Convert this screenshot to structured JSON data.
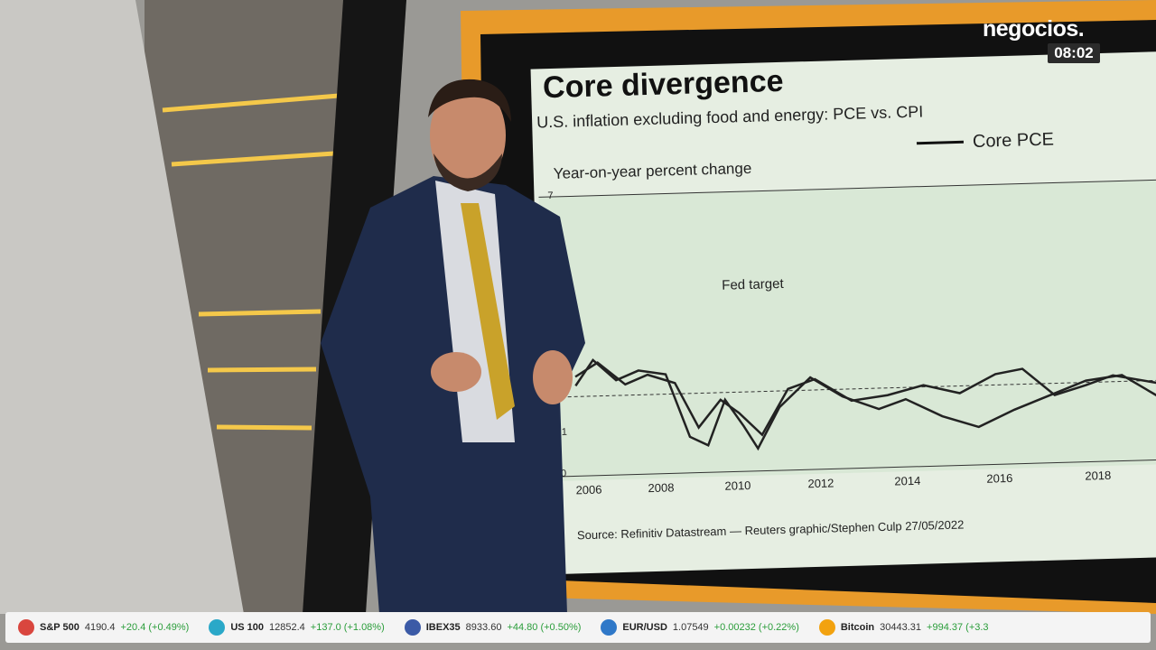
{
  "logo": "negocios.",
  "clock": "08:02",
  "screen": {
    "title": "Core divergence",
    "subtitle": "U.S. inflation excluding food and energy: PCE vs. CPI",
    "legend": "Core PCE",
    "axis_label": "Year-on-year percent change",
    "y_labels": [
      "7",
      "1",
      "0"
    ],
    "x_labels": [
      "2006",
      "2008",
      "2010",
      "2012",
      "2014",
      "2016",
      "2018"
    ],
    "annotation": "Fed target",
    "source": "Source: Refinitiv Datastream — Reuters graphic/Stephen Culp 27/05/2022"
  },
  "ticker": [
    {
      "name": "S&P 500",
      "price": "4190.4",
      "change": "+20.4 (+0.49%)"
    },
    {
      "name": "US 100",
      "price": "12852.4",
      "change": "+137.0 (+1.08%)"
    },
    {
      "name": "IBEX35",
      "price": "8933.60",
      "change": "+44.80 (+0.50%)"
    },
    {
      "name": "EUR/USD",
      "price": "1.07549",
      "change": "+0.00232 (+0.22%)"
    },
    {
      "name": "Bitcoin",
      "price": "30443.31",
      "change": "+994.37 (+3.3"
    }
  ]
}
